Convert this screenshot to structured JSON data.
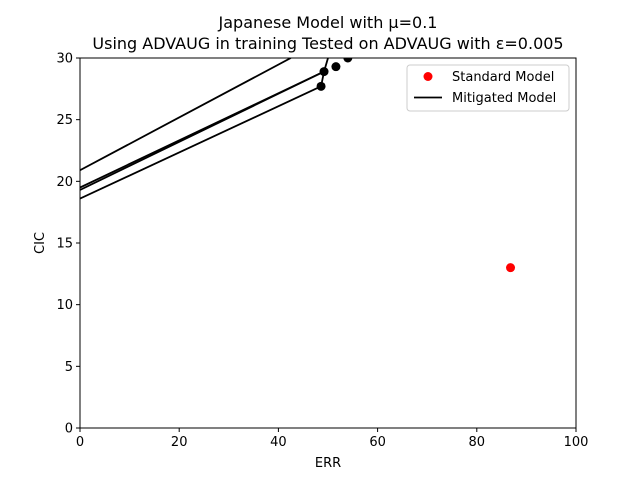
{
  "chart_data": {
    "type": "scatter",
    "title": "Japanese Model with μ=0.1",
    "subtitle": "Using ADVAUG in training Tested on ADVAUG with ε=0.005",
    "xlabel": "ERR",
    "ylabel": "CIC",
    "xlim": [
      0,
      100
    ],
    "ylim": [
      0,
      30
    ],
    "xticks": [
      0,
      20,
      40,
      60,
      80,
      100
    ],
    "yticks": [
      0,
      5,
      10,
      15,
      20,
      25,
      30
    ],
    "grid": false,
    "legend": {
      "placement": "top-right",
      "entries": [
        "Standard Model",
        "Mitigated Model"
      ]
    },
    "series": [
      {
        "name": "Standard Model",
        "kind": "scatter",
        "color": "#ff0000",
        "points": [
          [
            86.8,
            13.0
          ]
        ]
      },
      {
        "name": "Mitigated Model",
        "kind": "line",
        "color": "#000000",
        "segments": [
          [
            [
              0,
              18.6
            ],
            [
              48.6,
              27.7
            ]
          ],
          [
            [
              0,
              19.3
            ],
            [
              49.2,
              28.9
            ]
          ],
          [
            [
              0,
              19.5
            ],
            [
              49.2,
              28.9
            ]
          ],
          [
            [
              0,
              20.9
            ],
            [
              42.5,
              30.0
            ]
          ],
          [
            [
              48.6,
              27.7
            ],
            [
              49.2,
              28.9
            ]
          ],
          [
            [
              49.2,
              28.9
            ],
            [
              50.0,
              30.0
            ]
          ]
        ],
        "points": [
          [
            48.6,
            27.7
          ],
          [
            49.2,
            28.9
          ],
          [
            51.6,
            29.3
          ],
          [
            54.0,
            30.0
          ]
        ]
      }
    ]
  }
}
